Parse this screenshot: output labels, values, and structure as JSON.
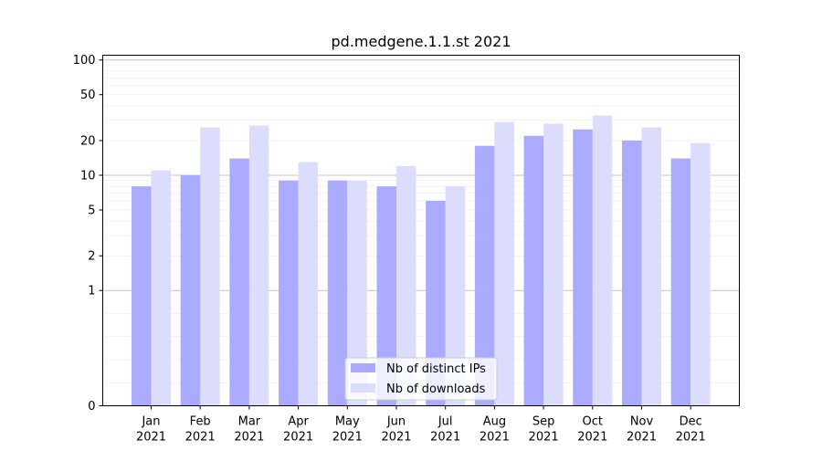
{
  "chart_data": {
    "type": "bar",
    "title": "pd.medgene.1.1.st 2021",
    "xlabel": "",
    "ylabel": "",
    "yscale": "symlog",
    "ylim": [
      0,
      110
    ],
    "yticks": [
      0,
      1,
      2,
      5,
      10,
      20,
      50,
      100
    ],
    "ytick_labels": [
      "0",
      "1",
      "2",
      "5",
      "10",
      "20",
      "50",
      "100"
    ],
    "categories": [
      {
        "month": "Jan",
        "year": "2021"
      },
      {
        "month": "Feb",
        "year": "2021"
      },
      {
        "month": "Mar",
        "year": "2021"
      },
      {
        "month": "Apr",
        "year": "2021"
      },
      {
        "month": "May",
        "year": "2021"
      },
      {
        "month": "Jun",
        "year": "2021"
      },
      {
        "month": "Jul",
        "year": "2021"
      },
      {
        "month": "Aug",
        "year": "2021"
      },
      {
        "month": "Sep",
        "year": "2021"
      },
      {
        "month": "Oct",
        "year": "2021"
      },
      {
        "month": "Nov",
        "year": "2021"
      },
      {
        "month": "Dec",
        "year": "2021"
      }
    ],
    "series": [
      {
        "name": "Nb of distinct IPs",
        "color": "#aaaaff",
        "values": [
          8,
          10,
          14,
          9,
          9,
          8,
          6,
          18,
          22,
          25,
          20,
          14
        ]
      },
      {
        "name": "Nb of downloads",
        "color": "#dcdcff",
        "values": [
          11,
          26,
          27,
          13,
          9,
          12,
          8,
          29,
          28,
          33,
          26,
          19
        ]
      }
    ],
    "grid": true,
    "legend_position": "bottom-center"
  }
}
